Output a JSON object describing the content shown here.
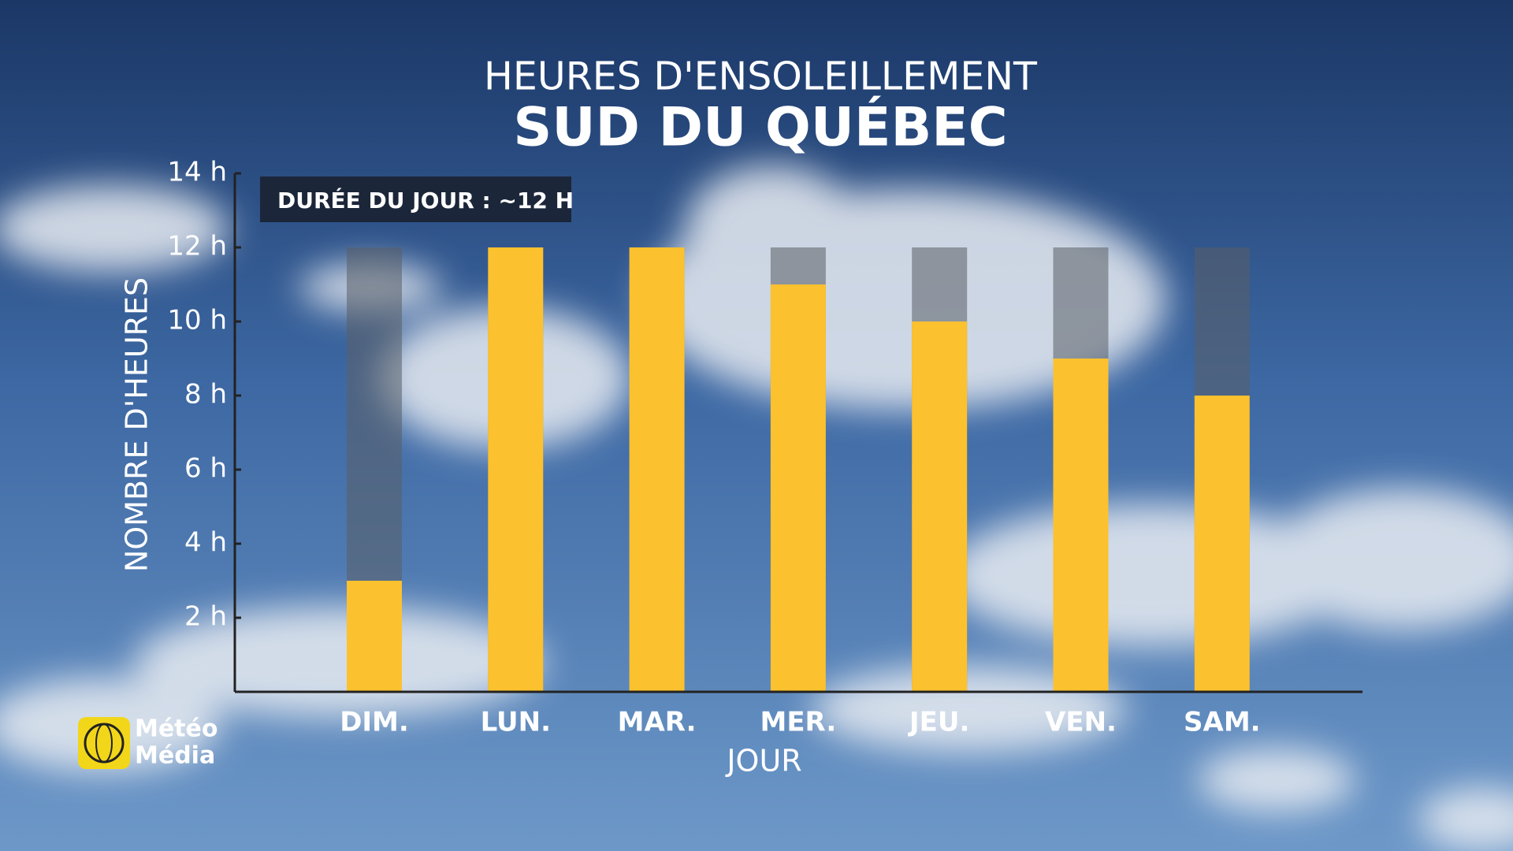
{
  "chart_data": {
    "type": "bar",
    "title": "HEURES D'ENSOLEILLEMENT",
    "subtitle": "SUD DU QUÉBEC",
    "x_label": "JOUR",
    "y_label": "NOMBRE D'HEURES",
    "categories": [
      "DIM.",
      "LUN.",
      "MAR.",
      "MER.",
      "JEU.",
      "VEN.",
      "SAM."
    ],
    "values": [
      3,
      12,
      12,
      11,
      10,
      9,
      8
    ],
    "color": "#fcc12f",
    "annotation": {
      "text": "DURÉE DU JOUR : ~12 H",
      "value": 12
    },
    "ylim": [
      0,
      14
    ],
    "yticks": [
      {
        "value": 2,
        "label": "2 h"
      },
      {
        "value": 4,
        "label": "4 h"
      },
      {
        "value": 6,
        "label": "6 h"
      },
      {
        "value": 8,
        "label": "8 h"
      },
      {
        "value": 10,
        "label": "10 h"
      },
      {
        "value": 12,
        "label": "12 h"
      },
      {
        "value": 14,
        "label": "14 h"
      }
    ]
  },
  "logo": {
    "line1": "Météo",
    "line2": "Média"
  }
}
